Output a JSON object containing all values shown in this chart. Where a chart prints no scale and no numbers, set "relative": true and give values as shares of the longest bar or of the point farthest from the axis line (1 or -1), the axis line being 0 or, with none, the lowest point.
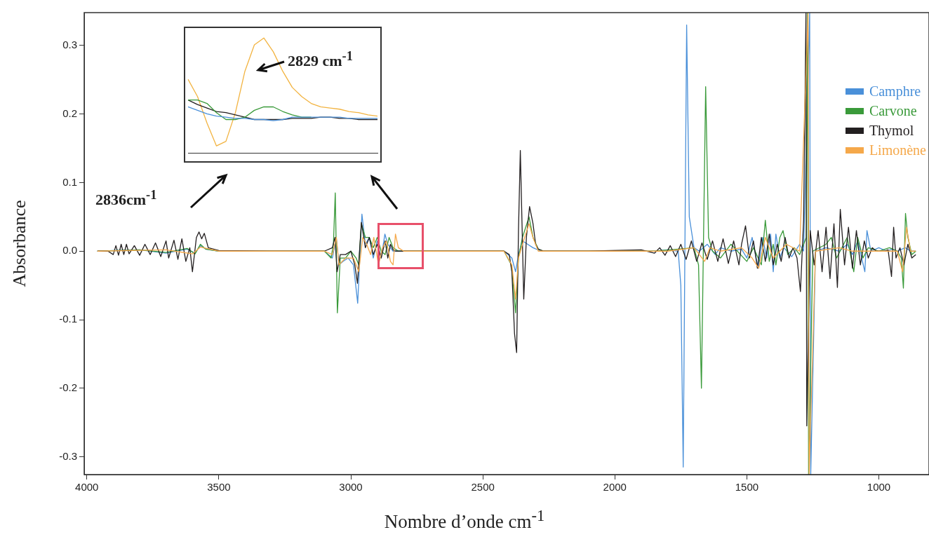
{
  "chart_data": [
    {
      "type": "line",
      "xlabel": "Nombre d’onde cm$^{-1}$",
      "ylabel": "Absorbance",
      "xlim": [
        4010,
        810
      ],
      "ylim": [
        -0.326,
        0.348
      ],
      "xticks": [
        4000,
        3500,
        3000,
        2500,
        2000,
        1500,
        1000
      ],
      "yticks": [
        -0.3,
        -0.2,
        -0.1,
        {
          "value": 0,
          "label": "0.0"
        },
        0.1,
        0.2,
        0.3
      ],
      "grid": false,
      "legend": "top right",
      "annotations": [
        "2836cm$^{-1}$"
      ],
      "series": [
        {
          "name": "Camphre",
          "color": "#4a90d9",
          "x": [
            3960,
            3800,
            3700,
            3620,
            3590,
            3570,
            3550,
            3500,
            3100,
            3070,
            3055,
            3045,
            3030,
            3010,
            2990,
            2974,
            2958,
            2945,
            2930,
            2915,
            2900,
            2885,
            2871,
            2860,
            2850,
            2840,
            2800,
            2500,
            2420,
            2390,
            2376,
            2365,
            2350,
            2330,
            2310,
            2280,
            2100,
            1850,
            1800,
            1760,
            1750,
            1741,
            1728,
            1718,
            1700,
            1680,
            1650,
            1620,
            1600,
            1560,
            1520,
            1500,
            1480,
            1457,
            1440,
            1425,
            1410,
            1400,
            1390,
            1375,
            1360,
            1330,
            1300,
            1285,
            1262,
            1258,
            1240,
            1200,
            1150,
            1120,
            1100,
            1080,
            1065,
            1053,
            1045,
            1030,
            1000,
            970,
            950,
            930,
            900,
            880,
            860
          ],
          "values": [
            0,
            0.002,
            -0.003,
            0.003,
            -0.003,
            0.008,
            0.003,
            0,
            0,
            -0.01,
            0.02,
            -0.02,
            -0.015,
            -0.01,
            -0.02,
            -0.076,
            0.054,
            0.01,
            0.02,
            -0.01,
            0.015,
            -0.01,
            0.025,
            0.01,
            0.005,
            0,
            0,
            0,
            0,
            -0.01,
            -0.03,
            -0.005,
            0.015,
            0.01,
            0.005,
            0,
            0,
            0,
            0.002,
            0,
            -0.05,
            -0.315,
            0.33,
            0.05,
            0.005,
            0,
            0.01,
            -0.005,
            0.005,
            0,
            0.003,
            -0.01,
            0.02,
            -0.025,
            0.02,
            -0.01,
            0.025,
            -0.03,
            0.025,
            -0.01,
            0.005,
            -0.008,
            0.01,
            0,
            0.348,
            -0.326,
            0,
            0.005,
            0,
            0.01,
            -0.005,
            0.015,
            -0.01,
            -0.03,
            0.03,
            0,
            0.005,
            0,
            0.003,
            0,
            0.005,
            0,
            0
          ]
        },
        {
          "name": "Carvone",
          "color": "#3a9a3a",
          "x": [
            3960,
            3800,
            3700,
            3620,
            3590,
            3570,
            3550,
            3500,
            3100,
            3075,
            3066,
            3059,
            3051,
            3040,
            3020,
            3000,
            2980,
            2970,
            2960,
            2945,
            2930,
            2915,
            2900,
            2885,
            2870,
            2855,
            2840,
            2820,
            2700,
            2500,
            2420,
            2392,
            2376,
            2365,
            2350,
            2325,
            2310,
            2290,
            2270,
            2100,
            1850,
            1760,
            1700,
            1683,
            1672,
            1656,
            1645,
            1630,
            1600,
            1560,
            1500,
            1475,
            1445,
            1430,
            1415,
            1400,
            1390,
            1375,
            1363,
            1345,
            1320,
            1300,
            1275,
            1270,
            1266,
            1250,
            1200,
            1180,
            1160,
            1120,
            1095,
            1080,
            1060,
            1040,
            1000,
            960,
            930,
            915,
            907,
            899,
            890,
            875,
            860
          ],
          "values": [
            0,
            0.002,
            -0.002,
            0.004,
            -0.004,
            0.01,
            0.003,
            0,
            0,
            -0.01,
            0.01,
            0.085,
            -0.09,
            -0.01,
            -0.01,
            0,
            -0.01,
            -0.02,
            0.04,
            0.02,
            0.02,
            0.005,
            0.02,
            0,
            -0.005,
            0.02,
            0.005,
            0,
            0,
            0,
            0,
            -0.02,
            -0.09,
            -0.01,
            0.02,
            0.05,
            0.02,
            0.003,
            0,
            0,
            0,
            0.003,
            0.005,
            -0.02,
            -0.2,
            0.24,
            0.02,
            0,
            -0.01,
            0.01,
            -0.015,
            0.005,
            -0.02,
            0.045,
            -0.015,
            0.01,
            -0.02,
            0.02,
            0.03,
            -0.005,
            0.005,
            -0.005,
            0.02,
            0.348,
            -0.326,
            0,
            0.01,
            0.02,
            -0.01,
            0.02,
            -0.03,
            0.02,
            -0.01,
            0.005,
            0,
            0.005,
            0,
            -0.01,
            -0.054,
            0.055,
            0.02,
            -0.005,
            0
          ]
        },
        {
          "name": "Thymol",
          "color": "#231f20",
          "x": [
            3960,
            3920,
            3900,
            3890,
            3880,
            3870,
            3860,
            3850,
            3840,
            3820,
            3800,
            3780,
            3760,
            3740,
            3720,
            3700,
            3690,
            3670,
            3655,
            3640,
            3625,
            3610,
            3600,
            3585,
            3575,
            3565,
            3555,
            3540,
            3500,
            3300,
            3100,
            3070,
            3060,
            3052,
            3040,
            3020,
            3000,
            2985,
            2975,
            2960,
            2945,
            2930,
            2915,
            2900,
            2885,
            2870,
            2860,
            2850,
            2840,
            2830,
            2815,
            2800,
            2700,
            2500,
            2420,
            2400,
            2390,
            2380,
            2372,
            2365,
            2358,
            2345,
            2335,
            2323,
            2310,
            2300,
            2290,
            2270,
            2100,
            1900,
            1850,
            1830,
            1810,
            1790,
            1770,
            1750,
            1730,
            1710,
            1690,
            1670,
            1650,
            1630,
            1610,
            1590,
            1570,
            1550,
            1530,
            1520,
            1505,
            1490,
            1475,
            1460,
            1445,
            1430,
            1415,
            1400,
            1385,
            1370,
            1355,
            1340,
            1325,
            1310,
            1297,
            1285,
            1276,
            1273,
            1260,
            1245,
            1230,
            1215,
            1200,
            1185,
            1170,
            1157,
            1146,
            1130,
            1115,
            1100,
            1085,
            1070,
            1055,
            1040,
            1025,
            1010,
            995,
            980,
            965,
            952,
            944,
            935,
            920,
            905,
            890,
            875,
            860
          ],
          "values": [
            0,
            0,
            -0.005,
            0.008,
            -0.006,
            0.01,
            -0.005,
            0.01,
            -0.004,
            0.008,
            -0.006,
            0.01,
            -0.005,
            0.012,
            -0.008,
            0.015,
            -0.01,
            0.016,
            -0.012,
            0.018,
            -0.015,
            0.005,
            -0.03,
            0.02,
            0.028,
            0.018,
            0.026,
            0.005,
            0.001,
            0,
            0,
            0.005,
            0.02,
            -0.03,
            -0.005,
            -0.005,
            0,
            -0.02,
            -0.047,
            0.042,
            0.005,
            0.02,
            -0.005,
            0.01,
            -0.01,
            0.015,
            -0.01,
            0.01,
            0.002,
            0,
            0,
            0,
            0,
            0,
            0,
            -0.005,
            -0.03,
            -0.12,
            -0.148,
            0.03,
            0.147,
            -0.07,
            0.02,
            0.065,
            0.04,
            0.01,
            0.003,
            0,
            0,
            0.002,
            -0.003,
            0.005,
            -0.006,
            0.008,
            -0.008,
            0.01,
            -0.012,
            0.015,
            -0.015,
            0.012,
            -0.012,
            0.015,
            -0.015,
            0.018,
            -0.018,
            0.015,
            -0.02,
            0.01,
            0.037,
            -0.01,
            0.015,
            -0.025,
            0.02,
            -0.015,
            0.025,
            -0.02,
            0.01,
            -0.015,
            0.02,
            -0.01,
            0.005,
            -0.01,
            -0.059,
            0.045,
            0.348,
            -0.255,
            0.03,
            -0.02,
            0.03,
            -0.03,
            0.035,
            -0.04,
            0.04,
            -0.053,
            0.061,
            -0.02,
            0.035,
            -0.025,
            0.03,
            -0.02,
            0.015,
            -0.01,
            0.005,
            0,
            0,
            0,
            0.002,
            -0.037,
            0.035,
            -0.01,
            0.005,
            -0.02,
            0.01,
            -0.01,
            -0.005
          ]
        },
        {
          "name": "Limonène",
          "color": "#f5a84a",
          "x": [
            3960,
            3700,
            3600,
            3570,
            3500,
            3100,
            3070,
            3055,
            3045,
            3020,
            2990,
            2970,
            2955,
            2940,
            2925,
            2913,
            2895,
            2880,
            2865,
            2850,
            2840,
            2831,
            2820,
            2800,
            2500,
            2420,
            2390,
            2376,
            2365,
            2350,
            2325,
            2310,
            2290,
            2100,
            1800,
            1700,
            1660,
            1640,
            1600,
            1520,
            1480,
            1455,
            1430,
            1400,
            1350,
            1300,
            1268,
            1264,
            1240,
            1150,
            1100,
            1000,
            930,
            910,
            895,
            880,
            860
          ],
          "values": [
            0,
            0.002,
            -0.004,
            0.006,
            0,
            0,
            -0.005,
            0.02,
            -0.02,
            -0.01,
            -0.01,
            -0.03,
            0.02,
            0.01,
            -0.005,
            0.02,
            -0.02,
            0.005,
            0.015,
            -0.015,
            -0.02,
            0.025,
            0.005,
            0,
            0,
            0,
            -0.02,
            -0.07,
            -0.01,
            0.01,
            0.04,
            0.02,
            0,
            0,
            0,
            0.005,
            -0.015,
            0.005,
            0,
            0.005,
            -0.01,
            -0.025,
            0.02,
            -0.01,
            0.01,
            0,
            0.348,
            -0.326,
            0,
            0.005,
            0,
            0,
            0,
            -0.03,
            0.035,
            0,
            0
          ]
        }
      ]
    },
    {
      "type": "line",
      "relative": true,
      "tick_labels": false,
      "annotations": [
        "2829 cm$^{-1}$"
      ],
      "categories": [
        null,
        null,
        null,
        null,
        null,
        null,
        null,
        null,
        null,
        null,
        null,
        null,
        null,
        null,
        null,
        null,
        null,
        null,
        null,
        null,
        null
      ],
      "series": [
        {
          "color": "#4a90d9",
          "values": [
            0.4,
            0.37,
            0.34,
            0.32,
            0.31,
            0.3,
            0.3,
            0.29,
            0.29,
            0.28,
            0.29,
            0.31,
            0.31,
            0.31,
            0.31,
            0.31,
            0.31,
            0.3,
            0.3,
            0.3,
            0.3
          ]
        },
        {
          "color": "#3a9a3a",
          "values": [
            0.46,
            0.46,
            0.43,
            0.35,
            0.29,
            0.29,
            0.31,
            0.37,
            0.4,
            0.4,
            0.36,
            0.33,
            0.31,
            0.31,
            null,
            null,
            null,
            null,
            null,
            null,
            null
          ]
        },
        {
          "color": "#231f20",
          "values": [
            0.46,
            0.42,
            0.39,
            0.36,
            0.35,
            0.33,
            0.31,
            0.29,
            0.29,
            0.29,
            0.29,
            0.3,
            0.3,
            0.3,
            0.31,
            0.31,
            0.3,
            0.3,
            0.29,
            0.29,
            0.29
          ]
        },
        {
          "color": "#f2b340",
          "values": [
            0.64,
            0.49,
            0.26,
            0.06,
            0.1,
            0.35,
            0.71,
            0.94,
            1,
            0.88,
            0.71,
            0.57,
            0.49,
            0.43,
            0.4,
            0.39,
            0.38,
            0.36,
            0.35,
            0.33,
            0.32
          ]
        }
      ]
    }
  ]
}
